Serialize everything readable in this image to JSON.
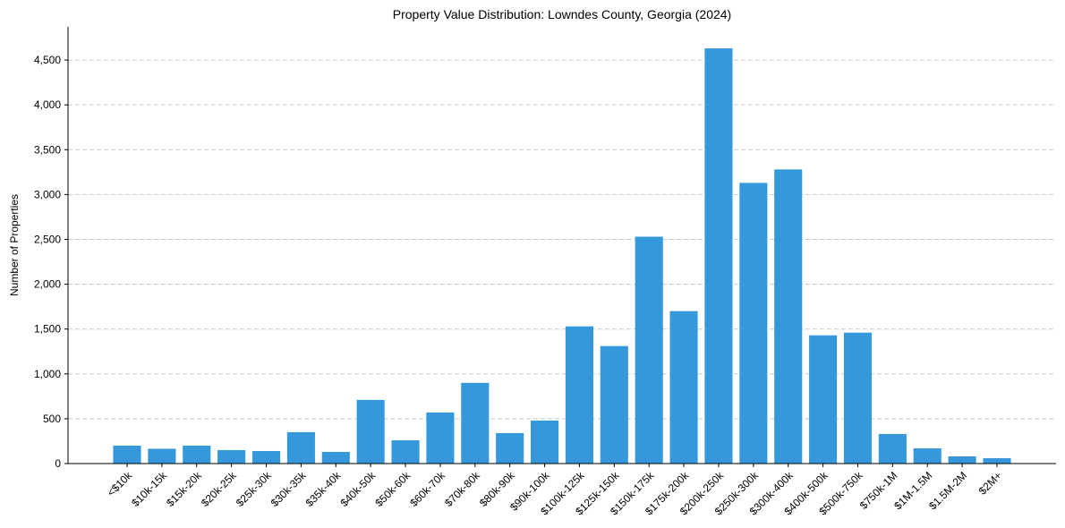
{
  "chart_data": {
    "type": "bar",
    "title": "Property Value Distribution: Lowndes County, Georgia (2024)",
    "xlabel": "",
    "ylabel": "Number of Properties",
    "ylim": [
      0,
      4870
    ],
    "yticks": [
      0,
      500,
      1000,
      1500,
      2000,
      2500,
      3000,
      3500,
      4000,
      4500
    ],
    "ytick_labels": [
      "0",
      "500",
      "1,000",
      "1,500",
      "2,000",
      "2,500",
      "3,000",
      "3,500",
      "4,000",
      "4,500"
    ],
    "grid": "y-dashed",
    "bar_color": "#3498db",
    "categories": [
      "<$10k",
      "$10k-15k",
      "$15k-20k",
      "$20k-25k",
      "$25k-30k",
      "$30k-35k",
      "$35k-40k",
      "$40k-50k",
      "$50k-60k",
      "$60k-70k",
      "$70k-80k",
      "$80k-90k",
      "$90k-100k",
      "$100k-125k",
      "$125k-150k",
      "$150k-175k",
      "$175k-200k",
      "$200k-250k",
      "$250k-300k",
      "$300k-400k",
      "$400k-500k",
      "$500k-750k",
      "$750k-1M",
      "$1M-1.5M",
      "$1.5M-2M",
      "$2M+"
    ],
    "values": [
      200,
      165,
      200,
      150,
      140,
      350,
      130,
      710,
      260,
      570,
      900,
      340,
      480,
      1530,
      1310,
      2530,
      1700,
      4630,
      3130,
      3280,
      1430,
      1460,
      330,
      170,
      80,
      60
    ]
  }
}
